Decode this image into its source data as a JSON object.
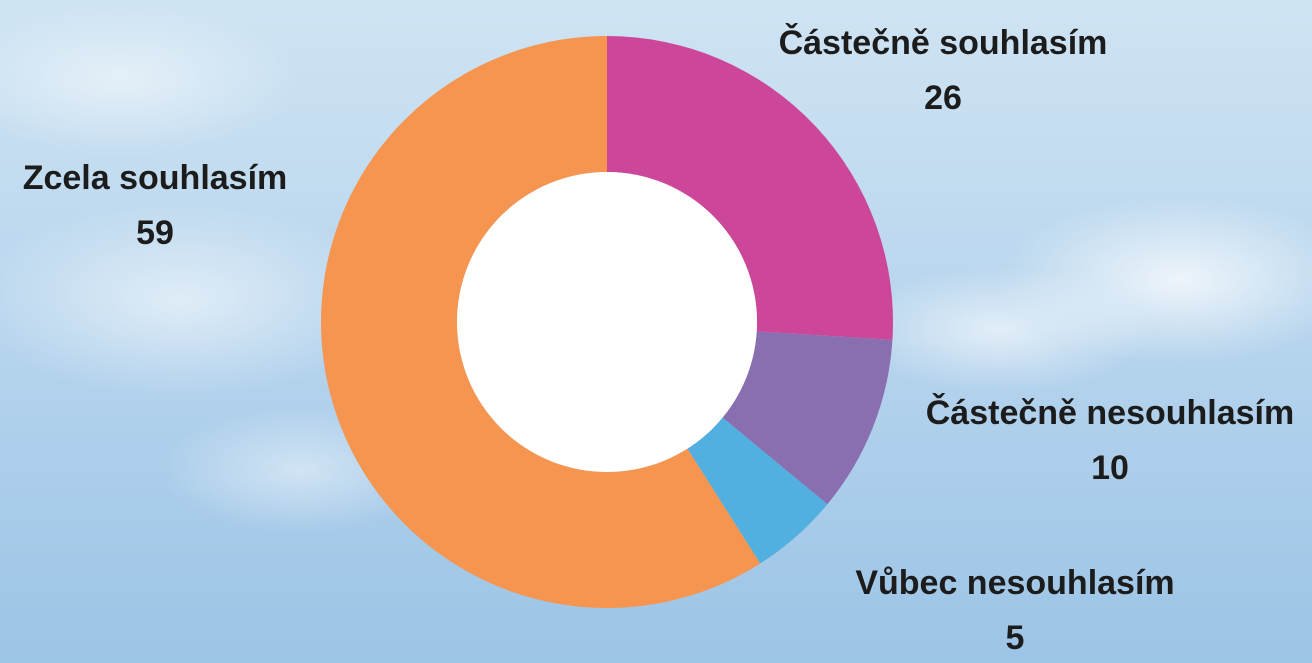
{
  "chart_data": {
    "type": "donut",
    "categories": [
      "Částečně souhlasím",
      "Částečně nesouhlasím",
      "Vůbec nesouhlasím",
      "Zcela souhlasím"
    ],
    "values": [
      26,
      10,
      5,
      59
    ],
    "colors": [
      "#cc4799",
      "#8a6fb0",
      "#52b0e0",
      "#f59550"
    ]
  }
}
